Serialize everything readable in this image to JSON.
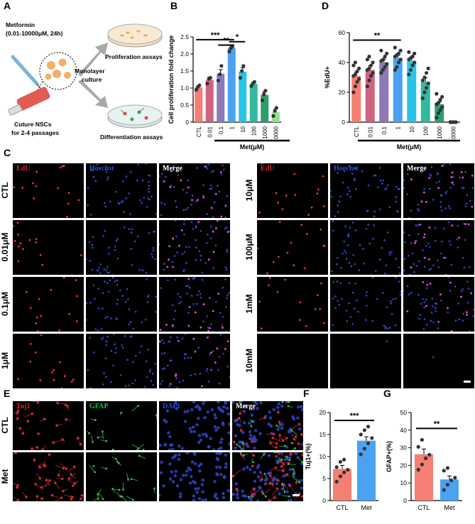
{
  "panels": {
    "a": "A",
    "b": "B",
    "c": "C",
    "d": "D",
    "e": "E",
    "f": "F",
    "g": "G"
  },
  "panelA": {
    "drug_line1": "Metformin",
    "drug_line2": "(0.01-10000μM, 24h)",
    "culture_line1": "Cuture NSCs",
    "culture_line2": "for 2-4 passages",
    "mono_line1": "Monolayer",
    "mono_line2": "culture",
    "prolif": "Proliferation assays",
    "diff": "Differentiation assays"
  },
  "chart_data": [
    {
      "id": "B",
      "type": "bar",
      "ylabel": "Cell proliferation fold change",
      "xlabel": "Met(μM)",
      "ylim": [
        0,
        2.5
      ],
      "yticks": [
        0,
        0.5,
        1.0,
        1.5,
        2.0,
        2.5
      ],
      "ytick_labels": [
        "0",
        "0.5",
        "1.0",
        "1.5",
        "2.0",
        "2.5"
      ],
      "categories": [
        "CTL",
        "0.01",
        "0.1",
        "1",
        "10",
        "100",
        "1000",
        "10000"
      ],
      "values": [
        1.02,
        1.24,
        1.42,
        2.18,
        1.48,
        1.12,
        0.8,
        0.3
      ],
      "errors": [
        0.05,
        0.08,
        0.12,
        0.06,
        0.12,
        0.05,
        0.09,
        0.08
      ],
      "points": [
        [
          0.95,
          1.03,
          1.08
        ],
        [
          1.13,
          1.27,
          1.3
        ],
        [
          1.22,
          1.4,
          1.65
        ],
        [
          2.07,
          2.17,
          2.22
        ],
        [
          1.3,
          1.5,
          1.65
        ],
        [
          1.06,
          1.14,
          1.18
        ],
        [
          0.64,
          0.82,
          0.92
        ],
        [
          0.18,
          0.33,
          0.42
        ]
      ],
      "colors": [
        "#f57f72",
        "#cf6481",
        "#8d79b8",
        "#4aa2f0",
        "#27c4e8",
        "#33b8a2",
        "#2c9e6c",
        "#8fe08f"
      ],
      "significance": [
        {
          "from": 0,
          "to": 3,
          "label": "***",
          "y": 2.42
        },
        {
          "from": 2,
          "to": 3,
          "label": "**",
          "y": 2.26
        },
        {
          "from": 3,
          "to": 4,
          "label": "*",
          "y": 2.36
        }
      ]
    },
    {
      "id": "D",
      "type": "bar",
      "ylabel": "%EdU+",
      "xlabel": "Met(μM)",
      "ylim": [
        0,
        60
      ],
      "yticks": [
        0,
        20,
        40,
        60
      ],
      "ytick_labels": [
        "0",
        "20",
        "40",
        "60"
      ],
      "categories": [
        "CTL",
        "0.01",
        "0.1",
        "1",
        "10",
        "100",
        "1000",
        "10000"
      ],
      "values": [
        31,
        35,
        40,
        43,
        41,
        27,
        12,
        0
      ],
      "errors": [
        2.5,
        2.8,
        2.2,
        1.8,
        2.0,
        2.6,
        1.5,
        0.1
      ],
      "points": [
        [
          20,
          24,
          27,
          29,
          31,
          32,
          34,
          36,
          38,
          40
        ],
        [
          24,
          28,
          31,
          33,
          35,
          36,
          38,
          40,
          42,
          44
        ],
        [
          33,
          35,
          37,
          39,
          41,
          42,
          44,
          46,
          48
        ],
        [
          35,
          37,
          40,
          42,
          44,
          45,
          46,
          48,
          50
        ],
        [
          32,
          35,
          38,
          40,
          42,
          43,
          44,
          46,
          47
        ],
        [
          16,
          20,
          23,
          26,
          28,
          30,
          33,
          36
        ],
        [
          3,
          6,
          8,
          10,
          12,
          13,
          15,
          17,
          19
        ],
        [
          0,
          0,
          0,
          0,
          0
        ]
      ],
      "colors": [
        "#f57f72",
        "#cf6481",
        "#8d79b8",
        "#4aa2f0",
        "#27c4e8",
        "#33b8a2",
        "#2c9e6c",
        "#8fe08f"
      ],
      "significance": [
        {
          "from": 0,
          "to": 3,
          "label": "**",
          "y": 55
        }
      ]
    },
    {
      "id": "F",
      "type": "bar",
      "ylabel": "Tuj1+(%)",
      "ylim": [
        0,
        20
      ],
      "yticks": [
        0,
        5,
        10,
        15,
        20
      ],
      "ytick_labels": [
        "0",
        "5",
        "10",
        "15",
        "20"
      ],
      "categories": [
        "CTL",
        "Met"
      ],
      "values": [
        7.2,
        13.6
      ],
      "errors": [
        0.8,
        0.9
      ],
      "points": [
        [
          4.3,
          5.5,
          6.4,
          7.0,
          7.6,
          8.8,
          9.3
        ],
        [
          10.5,
          11.8,
          13.0,
          14.2,
          15.0,
          16.0,
          16.8
        ]
      ],
      "colors": [
        "#f57f72",
        "#4aa2f0"
      ],
      "significance": [
        {
          "from": 0,
          "to": 1,
          "label": "***",
          "y": 18.2
        }
      ]
    },
    {
      "id": "G",
      "type": "bar",
      "ylabel": "GFAP+(%)",
      "ylim": [
        0,
        50
      ],
      "yticks": [
        0,
        10,
        20,
        30,
        40,
        50
      ],
      "ytick_labels": [
        "0",
        "10",
        "20",
        "30",
        "40",
        "50"
      ],
      "categories": [
        "CTL",
        "Met"
      ],
      "values": [
        26.3,
        12.0
      ],
      "errors": [
        3.0,
        2.0
      ],
      "points": [
        [
          17.5,
          20.5,
          24.0,
          26.0,
          30.5,
          34.5
        ],
        [
          6.0,
          9.0,
          11.5,
          13.0,
          17.0,
          18.5
        ]
      ],
      "colors": [
        "#f57f72",
        "#4aa2f0"
      ],
      "significance": [
        {
          "from": 0,
          "to": 1,
          "label": "**",
          "y": 41
        }
      ]
    }
  ],
  "panelC": {
    "headers": [
      "EdU",
      "Hoechst",
      "Merge"
    ],
    "header_colors": [
      "#e0202a",
      "#2a52d8",
      "#ffffff"
    ],
    "left_rows": [
      "CTL",
      "0.01μM",
      "0.1μM",
      "1μM"
    ],
    "right_rows": [
      "10μM",
      "100μM",
      "1mM",
      "10mM"
    ]
  },
  "panelE": {
    "headers": [
      "Tuj1",
      "GFAP",
      "DAPI",
      "Merge"
    ],
    "header_colors": [
      "#e0202a",
      "#2bb84a",
      "#2a52d8",
      "#ffffff"
    ],
    "rows": [
      "CTL",
      "Met"
    ]
  }
}
